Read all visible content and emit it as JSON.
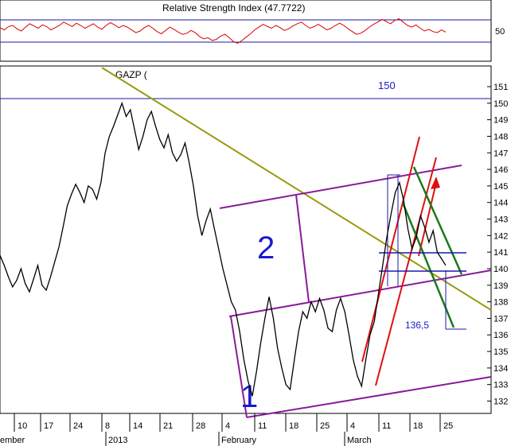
{
  "rsi_panel": {
    "title": "Relative Strength Index (47.7722)",
    "level_label": "50",
    "ylim": [
      0,
      100
    ],
    "levels": [
      30,
      70
    ]
  },
  "price_panel": {
    "symbol": "GAZP (",
    "ylim": [
      131.4,
      152.2
    ],
    "y_ticks": [
      132,
      133,
      134,
      135,
      136,
      137,
      138,
      139,
      140,
      141,
      142,
      143,
      144,
      145,
      146,
      147,
      148,
      149,
      150,
      151
    ],
    "level_150_label": "150",
    "level_136_label": "136,5",
    "channel_labels": [
      "1",
      "2"
    ],
    "x_ticks": [
      "10",
      "17",
      "24",
      "8",
      "14",
      "21",
      "28",
      "4",
      "11",
      "18",
      "25",
      "4",
      "11",
      "18",
      "25"
    ],
    "month_labels": [
      "ember",
      "2013",
      "February",
      "March"
    ]
  },
  "chart_data": {
    "type": "line",
    "series": [
      {
        "values": [
          140.8,
          140.2,
          139.5,
          138.9,
          139.3,
          140.0,
          139.1,
          138.6,
          139.4,
          140.2,
          139.0,
          138.7,
          139.5,
          140.4,
          141.3,
          142.5,
          143.8,
          144.5,
          145.1,
          144.6,
          144.0,
          145.0,
          144.8,
          144.2,
          145.2,
          147.0,
          148.0,
          148.6,
          149.3,
          150.0,
          149.2,
          149.6,
          148.4,
          147.2,
          148.0,
          149.0,
          149.5,
          148.6,
          147.8,
          147.3,
          148.1,
          147.0,
          146.5,
          146.9,
          147.6,
          146.4,
          145.0,
          143.2,
          142.0,
          142.9,
          143.6,
          142.4,
          141.2,
          140.0,
          139.0,
          138.0,
          137.5,
          136.2,
          134.5,
          133.2,
          132.3,
          133.8,
          135.5,
          137.0,
          138.3,
          137.0,
          135.2,
          134.0,
          133.0,
          132.7,
          134.5,
          136.2,
          137.4,
          137.0,
          138.0,
          137.4,
          138.2,
          137.5,
          136.4,
          136.2,
          137.5,
          138.2,
          137.4,
          136.0,
          134.5,
          133.5,
          132.9,
          134.5,
          136.0,
          136.8,
          138.5,
          140.2,
          141.9,
          143.3,
          144.6,
          145.2,
          144.1,
          142.4,
          141.2,
          141.9,
          143.2,
          142.5,
          141.6,
          142.3,
          141.0,
          140.6,
          140.2
        ]
      }
    ],
    "rsi_values": [
      56,
      52,
      58,
      60,
      54,
      50,
      57,
      63,
      59,
      55,
      61,
      58,
      52,
      56,
      60,
      66,
      62,
      58,
      64,
      60,
      55,
      59,
      63,
      57,
      53,
      60,
      65,
      61,
      56,
      60,
      57,
      52,
      47,
      50,
      56,
      60,
      55,
      49,
      45,
      51,
      57,
      53,
      48,
      44,
      46,
      51,
      47,
      40,
      36,
      38,
      33,
      35,
      41,
      44,
      38,
      31,
      28,
      33,
      39,
      45,
      52,
      57,
      62,
      58,
      55,
      60,
      56,
      51,
      54,
      59,
      63,
      66,
      60,
      55,
      58,
      62,
      57,
      52,
      55,
      60,
      64,
      60,
      54,
      49,
      44,
      46,
      51,
      57,
      62,
      66,
      71,
      67,
      63,
      69,
      72,
      66,
      60,
      57,
      61,
      55,
      50,
      53,
      49,
      47,
      52,
      48
    ]
  }
}
